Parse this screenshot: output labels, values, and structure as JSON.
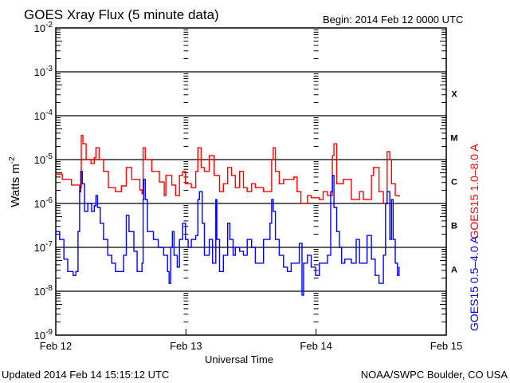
{
  "chart_data": {
    "type": "line",
    "title": "GOES Xray Flux (5 minute data)",
    "begin_label": "Begin:  2014 Feb 12 0000 UTC",
    "xlabel": "Universal Time",
    "ylabel": "Watts m",
    "ylabel_exp": "-2",
    "yscale": "log",
    "ylim_log10": [
      -9,
      -2
    ],
    "xlim_hours": [
      0,
      72
    ],
    "x_ticks": [
      {
        "hour": 0,
        "label": "Feb 12"
      },
      {
        "hour": 24,
        "label": "Feb 13"
      },
      {
        "hour": 48,
        "label": "Feb 14"
      },
      {
        "hour": 72,
        "label": "Feb 15"
      }
    ],
    "y_ticks": [
      {
        "exp": -2,
        "label": "-2"
      },
      {
        "exp": -3,
        "label": "-3"
      },
      {
        "exp": -4,
        "label": "-4"
      },
      {
        "exp": -5,
        "label": "-5"
      },
      {
        "exp": -6,
        "label": "-6"
      },
      {
        "exp": -7,
        "label": "-7"
      },
      {
        "exp": -8,
        "label": "-8"
      },
      {
        "exp": -9,
        "label": "-9"
      }
    ],
    "flare_classes": [
      {
        "label": "X",
        "log10": -3.5
      },
      {
        "label": "M",
        "log10": -4.5
      },
      {
        "label": "C",
        "log10": -5.5
      },
      {
        "label": "B",
        "log10": -6.5
      },
      {
        "label": "A",
        "log10": -7.5
      }
    ],
    "grid": "horizontal major decades",
    "series": [
      {
        "name": "GOES15 1.0–8.0 A",
        "color": "#ff0000",
        "points_hours_log10": [
          [
            0,
            -5.33
          ],
          [
            1.2,
            -5.45
          ],
          [
            2.9,
            -5.58
          ],
          [
            4.4,
            -5.73
          ],
          [
            4.6,
            -5.64
          ],
          [
            4.7,
            -4.45
          ],
          [
            5.0,
            -4.64
          ],
          [
            5.6,
            -5.0
          ],
          [
            6.5,
            -5.09
          ],
          [
            7.1,
            -4.96
          ],
          [
            7.4,
            -4.73
          ],
          [
            8.0,
            -5.0
          ],
          [
            8.8,
            -5.27
          ],
          [
            9.7,
            -5.64
          ],
          [
            11.0,
            -5.73
          ],
          [
            12.1,
            -5.6
          ],
          [
            13.0,
            -5.18
          ],
          [
            14.0,
            -5.45
          ],
          [
            15.5,
            -5.69
          ],
          [
            15.9,
            -5.78
          ],
          [
            16.1,
            -4.73
          ],
          [
            16.5,
            -5.0
          ],
          [
            17.7,
            -5.27
          ],
          [
            19.1,
            -5.51
          ],
          [
            20.0,
            -5.82
          ],
          [
            20.3,
            -5.36
          ],
          [
            21.4,
            -5.58
          ],
          [
            22.1,
            -5.82
          ],
          [
            22.8,
            -5.36
          ],
          [
            23.4,
            -5.27
          ],
          [
            23.9,
            -5.55
          ],
          [
            25.0,
            -5.64
          ],
          [
            25.8,
            -5.27
          ],
          [
            26.2,
            -4.73
          ],
          [
            26.8,
            -5.18
          ],
          [
            27.4,
            -5.27
          ],
          [
            28.3,
            -4.91
          ],
          [
            29.2,
            -5.36
          ],
          [
            30.2,
            -5.73
          ],
          [
            30.9,
            -5.55
          ],
          [
            31.7,
            -5.18
          ],
          [
            32.4,
            -5.36
          ],
          [
            33.1,
            -5.64
          ],
          [
            33.9,
            -5.27
          ],
          [
            34.6,
            -5.64
          ],
          [
            35.3,
            -5.73
          ],
          [
            36.1,
            -5.55
          ],
          [
            36.8,
            -5.64
          ],
          [
            38.3,
            -5.73
          ],
          [
            39.8,
            -5.0
          ],
          [
            40.1,
            -4.73
          ],
          [
            40.5,
            -5.27
          ],
          [
            41.2,
            -5.55
          ],
          [
            42.0,
            -5.45
          ],
          [
            43.9,
            -5.4
          ],
          [
            44.5,
            -5.73
          ],
          [
            45.2,
            -6.0
          ],
          [
            46.4,
            -5.82
          ],
          [
            47.1,
            -5.87
          ],
          [
            48.6,
            -5.91
          ],
          [
            49.3,
            -5.73
          ],
          [
            50.1,
            -5.82
          ],
          [
            51.0,
            -4.91
          ],
          [
            51.3,
            -4.64
          ],
          [
            51.8,
            -5.55
          ],
          [
            53.0,
            -5.45
          ],
          [
            54.5,
            -5.91
          ],
          [
            56.0,
            -5.73
          ],
          [
            56.7,
            -5.91
          ],
          [
            58.2,
            -5.36
          ],
          [
            58.6,
            -5.18
          ],
          [
            59.6,
            -5.73
          ],
          [
            60.4,
            -6.0
          ],
          [
            61.1,
            -4.82
          ],
          [
            61.6,
            -5.0
          ],
          [
            61.9,
            -5.55
          ],
          [
            62.6,
            -5.82
          ],
          [
            63.3,
            -5.84
          ]
        ]
      },
      {
        "name": "GOES15 0.5–4.0 A",
        "color": "#0000ff",
        "points_hours_log10": [
          [
            0,
            -6.64
          ],
          [
            0.7,
            -6.82
          ],
          [
            1.5,
            -7.27
          ],
          [
            2.2,
            -7.55
          ],
          [
            3.2,
            -7.64
          ],
          [
            3.7,
            -7.55
          ],
          [
            4.1,
            -6.64
          ],
          [
            4.4,
            -5.73
          ],
          [
            4.6,
            -5.27
          ],
          [
            4.9,
            -5.55
          ],
          [
            5.3,
            -6.18
          ],
          [
            5.9,
            -6.0
          ],
          [
            6.6,
            -6.18
          ],
          [
            7.1,
            -6.05
          ],
          [
            7.4,
            -5.82
          ],
          [
            7.7,
            -6.09
          ],
          [
            8.2,
            -6.45
          ],
          [
            8.8,
            -6.82
          ],
          [
            9.6,
            -7.18
          ],
          [
            10.3,
            -7.36
          ],
          [
            11.0,
            -7.55
          ],
          [
            11.8,
            -7.55
          ],
          [
            12.5,
            -7.18
          ],
          [
            13.0,
            -6.27
          ],
          [
            13.5,
            -6.64
          ],
          [
            14.4,
            -7.09
          ],
          [
            15.0,
            -7.55
          ],
          [
            15.9,
            -7.36
          ],
          [
            16.1,
            -5.91
          ],
          [
            16.2,
            -5.45
          ],
          [
            16.5,
            -5.91
          ],
          [
            16.9,
            -6.64
          ],
          [
            18.0,
            -6.82
          ],
          [
            18.9,
            -7.0
          ],
          [
            19.9,
            -7.18
          ],
          [
            20.6,
            -7.55
          ],
          [
            20.9,
            -7.82
          ],
          [
            21.2,
            -7.0
          ],
          [
            21.5,
            -6.64
          ],
          [
            21.8,
            -7.18
          ],
          [
            22.4,
            -7.45
          ],
          [
            22.8,
            -6.82
          ],
          [
            23.4,
            -6.45
          ],
          [
            23.9,
            -6.82
          ],
          [
            24.4,
            -7.0
          ],
          [
            25.0,
            -6.82
          ],
          [
            25.8,
            -6.73
          ],
          [
            26.2,
            -5.91
          ],
          [
            26.5,
            -5.73
          ],
          [
            27.0,
            -6.45
          ],
          [
            27.4,
            -7.18
          ],
          [
            28.3,
            -6.82
          ],
          [
            28.9,
            -7.36
          ],
          [
            29.5,
            -5.91
          ],
          [
            29.7,
            -6.82
          ],
          [
            30.2,
            -7.55
          ],
          [
            30.9,
            -7.18
          ],
          [
            31.7,
            -6.45
          ],
          [
            32.1,
            -6.82
          ],
          [
            32.7,
            -7.18
          ],
          [
            33.1,
            -7.0
          ],
          [
            33.9,
            -7.09
          ],
          [
            34.6,
            -7.18
          ],
          [
            35.3,
            -6.82
          ],
          [
            36.1,
            -7.0
          ],
          [
            36.8,
            -7.36
          ],
          [
            38.3,
            -6.82
          ],
          [
            39.5,
            -6.45
          ],
          [
            39.8,
            -5.91
          ],
          [
            40.1,
            -6.18
          ],
          [
            40.5,
            -6.82
          ],
          [
            41.2,
            -7.18
          ],
          [
            42.0,
            -7.45
          ],
          [
            42.7,
            -7.55
          ],
          [
            43.4,
            -7.36
          ],
          [
            44.9,
            -6.91
          ],
          [
            45.4,
            -8.09
          ],
          [
            45.7,
            -7.36
          ],
          [
            46.4,
            -7.18
          ],
          [
            47.1,
            -7.45
          ],
          [
            47.9,
            -7.64
          ],
          [
            48.6,
            -7.36
          ],
          [
            49.3,
            -7.36
          ],
          [
            50.1,
            -7.18
          ],
          [
            50.7,
            -5.73
          ],
          [
            51.0,
            -5.36
          ],
          [
            51.3,
            -6.09
          ],
          [
            51.8,
            -6.64
          ],
          [
            52.3,
            -7.0
          ],
          [
            52.7,
            -7.36
          ],
          [
            53.3,
            -7.27
          ],
          [
            54.5,
            -7.36
          ],
          [
            55.4,
            -6.82
          ],
          [
            56.0,
            -7.36
          ],
          [
            57.4,
            -6.73
          ],
          [
            58.2,
            -7.27
          ],
          [
            58.9,
            -7.64
          ],
          [
            59.6,
            -7.82
          ],
          [
            60.4,
            -7.18
          ],
          [
            60.8,
            -6.0
          ],
          [
            61.1,
            -5.73
          ],
          [
            61.6,
            -6.82
          ],
          [
            61.9,
            -5.91
          ],
          [
            62.2,
            -6.82
          ],
          [
            62.6,
            -7.36
          ],
          [
            63.0,
            -7.64
          ],
          [
            63.3,
            -7.45
          ]
        ]
      }
    ]
  },
  "footer": {
    "updated": "Updated 2014 Feb 14 15:15:12 UTC",
    "credit": "NOAA/SWPC Boulder, CO USA"
  }
}
